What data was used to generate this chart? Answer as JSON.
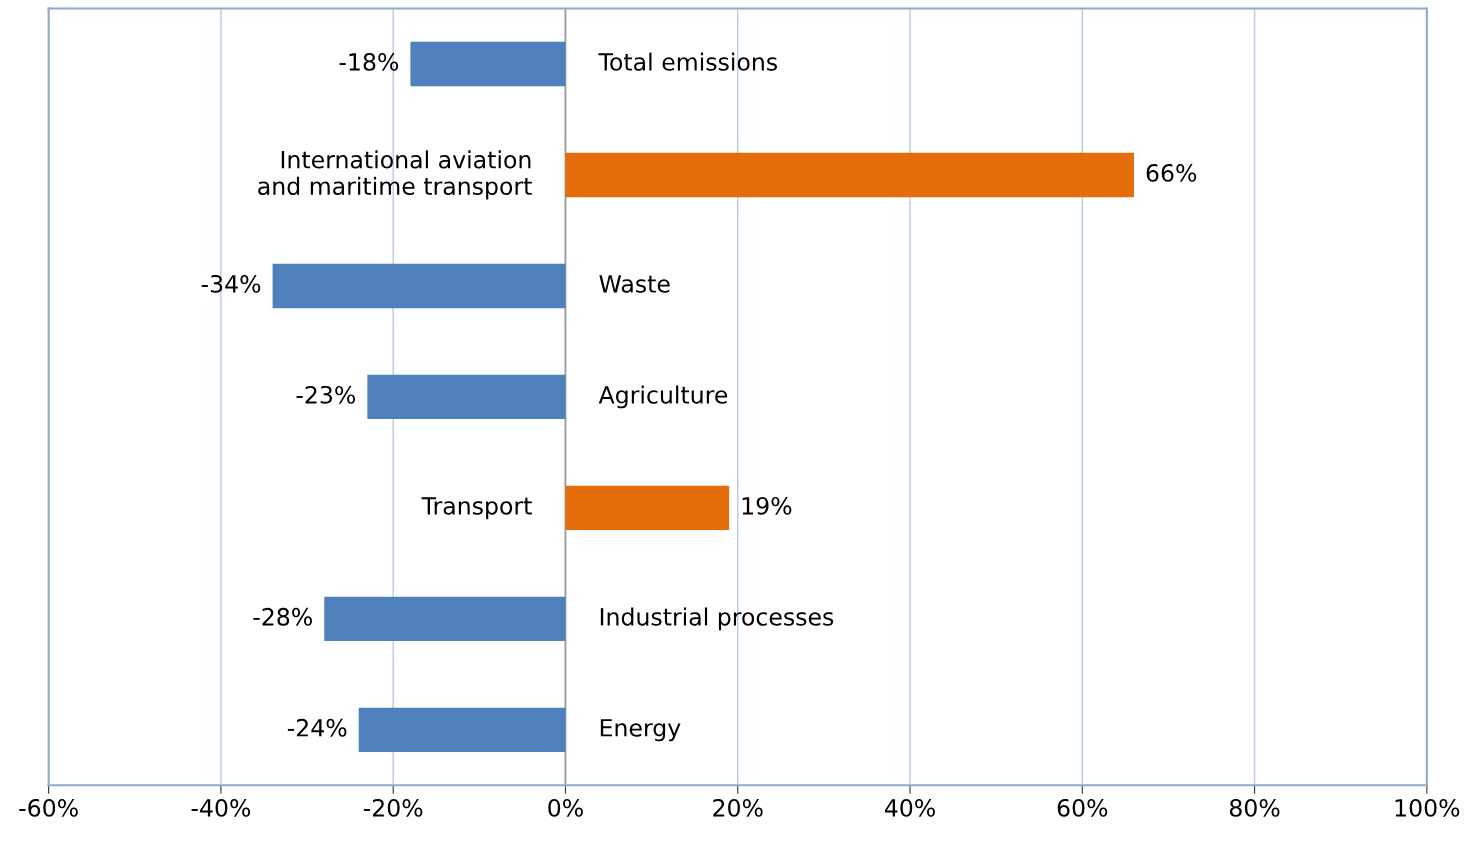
{
  "chart_data": {
    "type": "bar",
    "orientation": "horizontal",
    "categories": [
      "Total emissions",
      "International aviation\nand maritime transport",
      "Waste",
      "Agriculture",
      "Transport",
      "Industrial processes",
      "Energy"
    ],
    "values": [
      -18,
      66,
      -34,
      -23,
      19,
      -28,
      -24
    ],
    "colors": [
      "#4f81bd",
      "#e46c0a",
      "#4f81bd",
      "#4f81bd",
      "#e46c0a",
      "#4f81bd",
      "#4f81bd"
    ],
    "value_labels": [
      "-18%",
      "66%",
      "-34%",
      "-23%",
      "19%",
      "-28%",
      "-24%"
    ],
    "xlim": [
      -60,
      100
    ],
    "xticks": [
      {
        "value": -60,
        "label": "-60%"
      },
      {
        "value": -40,
        "label": "-40%"
      },
      {
        "value": -20,
        "label": "-20%"
      },
      {
        "value": 0,
        "label": "0%"
      },
      {
        "value": 20,
        "label": "20%"
      },
      {
        "value": 40,
        "label": "40%"
      },
      {
        "value": 60,
        "label": "60%"
      },
      {
        "value": 80,
        "label": "80%"
      },
      {
        "value": 100,
        "label": "100%"
      }
    ],
    "grid": "x"
  }
}
